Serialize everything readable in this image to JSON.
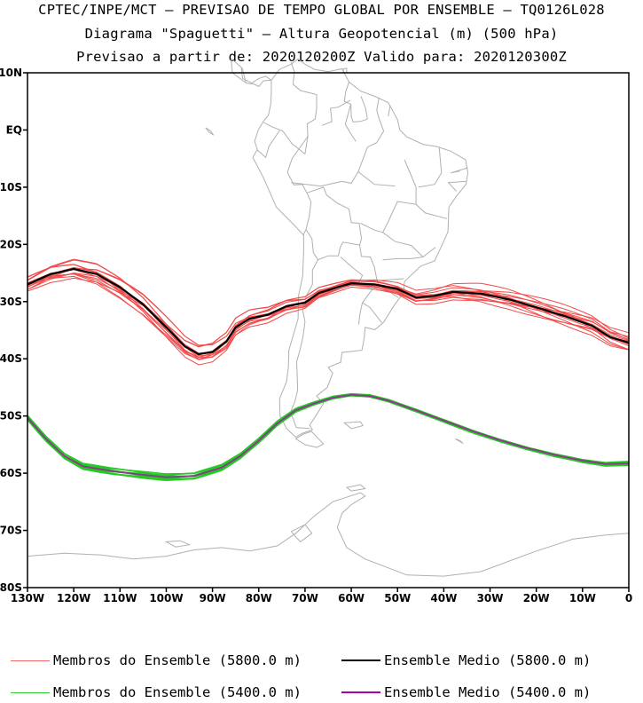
{
  "title": {
    "line1": "CPTEC/INPE/MCT — PREVISAO DE TEMPO GLOBAL POR ENSEMBLE — TQ0126L028",
    "line2": "Diagrama \"Spaguetti\" — Altura Geopotencial (m) (500 hPa)",
    "line3": "Previsao a partir de: 2020120200Z  Valido para: 2020120300Z"
  },
  "map": {
    "lat_labels": [
      "10N",
      "EQ",
      "10S",
      "20S",
      "30S",
      "40S",
      "50S",
      "60S",
      "70S",
      "80S"
    ],
    "lat_values": [
      10,
      0,
      -10,
      -20,
      -30,
      -40,
      -50,
      -60,
      -70,
      -80
    ],
    "lon_labels": [
      "130W",
      "120W",
      "110W",
      "100W",
      "90W",
      "80W",
      "70W",
      "60W",
      "50W",
      "40W",
      "30W",
      "20W",
      "10W",
      "0"
    ],
    "lon_values": [
      -130,
      -120,
      -110,
      -100,
      -90,
      -80,
      -70,
      -60,
      -50,
      -40,
      -30,
      -20,
      -10,
      0
    ],
    "lon_range": [
      -130,
      0
    ],
    "lat_range": [
      -80,
      10
    ],
    "coastline_color": "#b0b0b0"
  },
  "contours": {
    "c5800": {
      "mean_color": "#000000",
      "member_color": "#f04a4a",
      "mean": [
        [
          -130,
          -27
        ],
        [
          -125,
          -25.2
        ],
        [
          -120,
          -24.3
        ],
        [
          -115,
          -25.2
        ],
        [
          -110,
          -27.5
        ],
        [
          -105,
          -30.5
        ],
        [
          -100,
          -34.5
        ],
        [
          -96,
          -37.8
        ],
        [
          -93,
          -39.2
        ],
        [
          -90,
          -38.8
        ],
        [
          -87,
          -37
        ],
        [
          -85,
          -34.5
        ],
        [
          -82,
          -33
        ],
        [
          -78,
          -32.3
        ],
        [
          -74,
          -30.8
        ],
        [
          -70,
          -30.2
        ],
        [
          -67,
          -28.5
        ],
        [
          -63,
          -27.5
        ],
        [
          -60,
          -26.8
        ],
        [
          -55,
          -27
        ],
        [
          -50,
          -27.8
        ],
        [
          -46,
          -29.3
        ],
        [
          -42,
          -29
        ],
        [
          -38,
          -28.3
        ],
        [
          -32,
          -28.6
        ],
        [
          -26,
          -29.6
        ],
        [
          -20,
          -31
        ],
        [
          -14,
          -32.5
        ],
        [
          -8,
          -34.2
        ],
        [
          -4,
          -36.2
        ],
        [
          0,
          -37.2
        ]
      ],
      "spread": 1.7
    },
    "c5400": {
      "mean_color": "#8a3e8a",
      "member_color": "#22cc22",
      "mean": [
        [
          -130,
          -50.3
        ],
        [
          -126,
          -54
        ],
        [
          -122,
          -57
        ],
        [
          -118,
          -58.8
        ],
        [
          -112,
          -59.6
        ],
        [
          -106,
          -60.2
        ],
        [
          -100,
          -60.7
        ],
        [
          -94,
          -60.5
        ],
        [
          -88,
          -59
        ],
        [
          -84,
          -57
        ],
        [
          -80,
          -54.3
        ],
        [
          -76,
          -51.3
        ],
        [
          -72,
          -49
        ],
        [
          -68,
          -47.8
        ],
        [
          -64,
          -46.8
        ],
        [
          -60,
          -46.3
        ],
        [
          -56,
          -46.5
        ],
        [
          -52,
          -47.3
        ],
        [
          -46,
          -49
        ],
        [
          -40,
          -50.8
        ],
        [
          -34,
          -52.6
        ],
        [
          -28,
          -54.2
        ],
        [
          -22,
          -55.6
        ],
        [
          -16,
          -56.8
        ],
        [
          -10,
          -57.8
        ],
        [
          -5,
          -58.4
        ],
        [
          0,
          -58.3
        ]
      ],
      "spread": 0.5
    }
  },
  "legend": {
    "members_5800": "Membros do Ensemble (5800.0 m)",
    "mean_5800": "Ensemble Medio (5800.0 m)",
    "members_5400": "Membros do Ensemble (5400.0 m)",
    "mean_5400": "Ensemble Medio (5400.0 m)",
    "color_members_5800": "#f06a6a",
    "color_mean_5800": "#000000",
    "color_members_5400": "#33cc33",
    "color_mean_5400": "#aa00aa"
  }
}
